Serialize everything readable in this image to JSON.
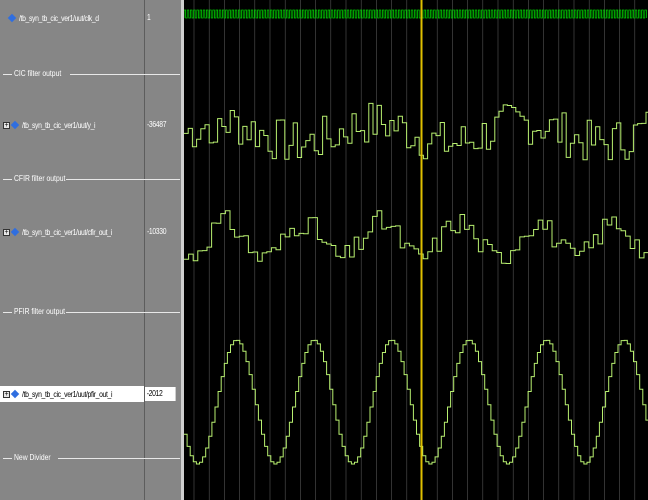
{
  "signals": [
    {
      "name": "/tb_syn_tb_cic_ver1/uut/clk_d",
      "value": "1",
      "expandable": false,
      "selected": false
    },
    {
      "name": "/tb_syn_tb_cic_ver1/uut/y_i",
      "value": "-36487",
      "expandable": true,
      "selected": false
    },
    {
      "name": "/tb_syn_tb_cic_ver1/uut/cfir_out_i",
      "value": "-10330",
      "expandable": true,
      "selected": false
    },
    {
      "name": "/tb_syn_tb_cic_ver1/uut/pfir_out_i",
      "value": "-2012",
      "expandable": true,
      "selected": true
    }
  ],
  "dividers": [
    {
      "label": "CIC filter output"
    },
    {
      "label": "CFIR filter output"
    },
    {
      "label": "PFIR filter output"
    },
    {
      "label": "New Divider"
    }
  ],
  "cursor_color": "#e0c000",
  "clock_color": "#00c800",
  "wave_color": "#b8f070",
  "grid_color": "#555555"
}
